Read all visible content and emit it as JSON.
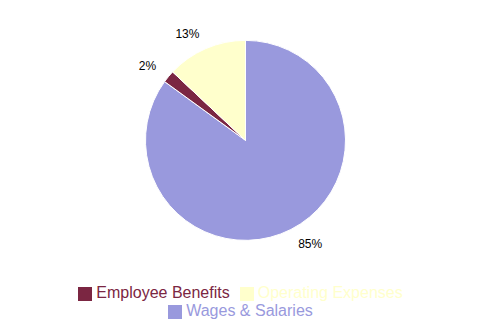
{
  "chart_data": {
    "type": "pie",
    "categories": [
      "Wages & Salaries",
      "Employee Benefits",
      "Operating Expenses"
    ],
    "values": [
      85,
      2,
      13
    ],
    "value_labels": [
      "85%",
      "2%",
      "13%"
    ],
    "colors": [
      "#9999dd",
      "#7b2642",
      "#ffffcc"
    ],
    "data_labels": true,
    "legend": "bottom"
  }
}
